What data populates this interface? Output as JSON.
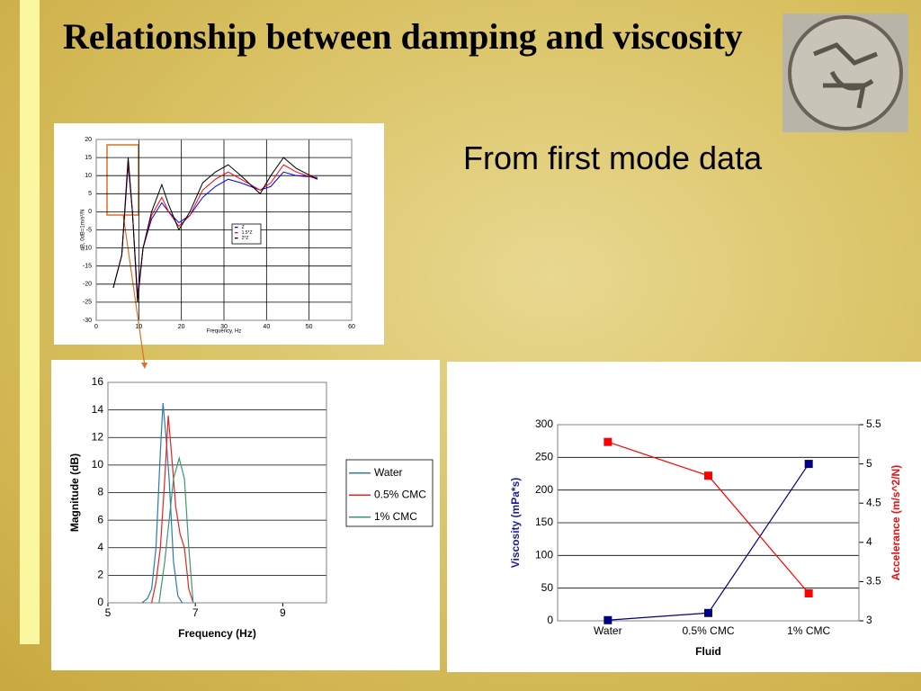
{
  "title": "Relationship between damping and viscosity",
  "text": "From first mode data",
  "chart_data": [
    {
      "type": "line",
      "x_label": "Frequency, Hz",
      "y_label": "dB, 0dB=1m/s²/N",
      "xlim": [
        0,
        60
      ],
      "xticks": [
        0,
        10,
        20,
        30,
        40,
        50,
        60
      ],
      "ylim": [
        -30,
        20
      ],
      "yticks": [
        -30,
        -25,
        -20,
        -15,
        -10,
        -5,
        0,
        5,
        10,
        15,
        20
      ],
      "grid": true,
      "xgrid": true,
      "legend": "center",
      "x": [
        4,
        6,
        7.5,
        8.5,
        9.7,
        11,
        13,
        15.4,
        17,
        19.4,
        22,
        25,
        28,
        31,
        34,
        38.5,
        41,
        44,
        47,
        52
      ],
      "series": [
        {
          "name": "Z",
          "color": "#0000ff",
          "values": [
            -21,
            -12,
            13,
            0,
            -23,
            -10,
            -2,
            2.5,
            0,
            -3,
            -1,
            4,
            7,
            9,
            8,
            6,
            7,
            11,
            10,
            9.5
          ]
        },
        {
          "name": "1.5*Z",
          "color": "#ff0000",
          "values": [
            -21,
            -12,
            14,
            0,
            -24,
            -10,
            -1,
            4,
            0,
            -4,
            -1,
            6,
            9,
            11,
            9,
            6,
            8,
            13,
            11,
            9
          ]
        },
        {
          "name": "2*Z",
          "color": "#000000",
          "values": [
            -21,
            -12,
            15,
            0,
            -25,
            -10,
            0,
            7.5,
            2,
            -5,
            0,
            8,
            11,
            13,
            10,
            5,
            10,
            15,
            12,
            9
          ]
        }
      ]
    },
    {
      "type": "line",
      "x_label": "Frequency (Hz)",
      "y_label": "Magnitude (dB)",
      "xlim": [
        5,
        10
      ],
      "xticks": [
        5,
        7,
        9
      ],
      "ylim": [
        0,
        16
      ],
      "yticks": [
        0,
        2,
        4,
        6,
        8,
        10,
        12,
        14,
        16
      ],
      "grid": true,
      "legend": "right",
      "series": [
        {
          "name": "Water",
          "color": "#2b7bb0",
          "x": [
            5.78,
            5.9,
            6.0,
            6.1,
            6.2,
            6.26,
            6.33,
            6.4,
            6.5,
            6.6,
            6.7
          ],
          "values": [
            0,
            0.3,
            1,
            4,
            11,
            14.5,
            12,
            9,
            3,
            0.5,
            0
          ]
        },
        {
          "name": "0.5% CMC",
          "color": "#e8231f",
          "x": [
            6.0,
            6.1,
            6.2,
            6.3,
            6.38,
            6.45,
            6.55,
            6.65,
            6.75,
            6.85,
            6.95
          ],
          "values": [
            0,
            1.5,
            4,
            9,
            13.6,
            11,
            7,
            5,
            4,
            1,
            0
          ]
        },
        {
          "name": "1% CMC",
          "color": "#3a9a6a",
          "x": [
            6.17,
            6.3,
            6.4,
            6.5,
            6.63,
            6.75,
            6.85,
            6.95
          ],
          "values": [
            0,
            3,
            6,
            9,
            10.5,
            9,
            4,
            0
          ]
        }
      ]
    },
    {
      "type": "line",
      "x_label": "Fluid",
      "y_label": "Viscosity (mPa*s)",
      "y2_label": "Accelerance (m/s^2/N)",
      "categories": [
        "Water",
        "0.5% CMC",
        "1% CMC"
      ],
      "ylim": [
        0,
        300
      ],
      "yticks": [
        0,
        50,
        100,
        150,
        200,
        250,
        300
      ],
      "y2lim": [
        3,
        5.5
      ],
      "y2ticks": [
        3,
        3.5,
        4,
        4.5,
        5,
        5.5
      ],
      "grid": true,
      "markers": true,
      "series": [
        {
          "name": "Viscosity",
          "color": "#000080",
          "values": [
            1,
            12,
            240
          ]
        },
        {
          "name": "Accelerance",
          "color": "#ff0000",
          "axis": "y2",
          "values": [
            5.28,
            4.85,
            3.35
          ]
        }
      ]
    }
  ]
}
